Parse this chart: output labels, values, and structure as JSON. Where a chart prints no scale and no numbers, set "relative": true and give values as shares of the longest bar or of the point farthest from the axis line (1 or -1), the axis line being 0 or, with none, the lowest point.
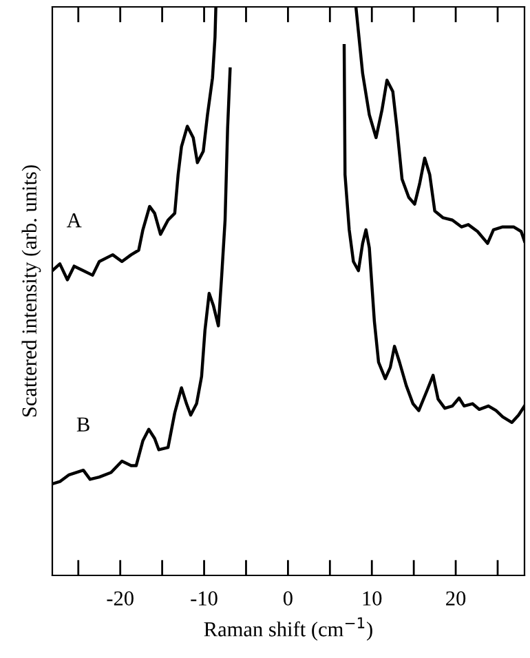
{
  "chart_data": {
    "type": "line",
    "relative": true,
    "xlabel": "Raman shift (cm$^{−1}$)",
    "ylabel": "Scattered intensity (arb. units)",
    "xlim": [
      -28.1,
      28.2
    ],
    "xticks": [
      {
        "value": -25,
        "label": null
      },
      -20,
      {
        "value": -15,
        "label": null
      },
      -10,
      {
        "value": -5,
        "label": null
      },
      0,
      {
        "value": 5,
        "label": null
      },
      10,
      {
        "value": 15,
        "label": null
      },
      20,
      {
        "value": 25,
        "label": null
      }
    ],
    "tick_labels": "x",
    "grid": false,
    "legend": false,
    "marker": "none",
    "line_style": "solid",
    "series": [
      {
        "name": "A",
        "color": "#000000",
        "x": [
          -28.1,
          -27.2,
          -26.3,
          -25.5,
          -24.4,
          -23.3,
          -22.5,
          -20.9,
          -19.8,
          -18.7,
          -17.8,
          -17.3,
          -16.5,
          -15.9,
          -15.2,
          -14.3,
          -13.5,
          -13.1,
          -12.7,
          -12.0,
          -11.3,
          -10.8,
          -10.1,
          -9.6,
          -9.0,
          -8.7,
          -8.6,
          0,
          8.1,
          8.4,
          8.9,
          9.7,
          10.5,
          11.2,
          11.8,
          12.5,
          13.0,
          13.6,
          14.4,
          15.1,
          15.7,
          16.3,
          16.9,
          17.5,
          18.5,
          19.6,
          20.7,
          21.5,
          22.6,
          23.8,
          24.5,
          25.6,
          26.9,
          27.8,
          28.2
        ],
        "values": [
          0.536,
          0.548,
          0.52,
          0.544,
          0.536,
          0.528,
          0.552,
          0.564,
          0.552,
          0.564,
          0.572,
          0.608,
          0.649,
          0.637,
          0.6,
          0.625,
          0.637,
          0.705,
          0.754,
          0.79,
          0.77,
          0.726,
          0.746,
          0.81,
          0.875,
          0.947,
          1.0,
          null,
          1.0,
          0.956,
          0.883,
          0.81,
          0.77,
          0.818,
          0.871,
          0.851,
          0.786,
          0.697,
          0.665,
          0.653,
          0.689,
          0.734,
          0.705,
          0.641,
          0.629,
          0.625,
          0.613,
          0.617,
          0.605,
          0.584,
          0.608,
          0.613,
          0.613,
          0.605,
          0.588
        ]
      },
      {
        "name": "B",
        "color": "#000000",
        "x": [
          -28.1,
          -27.2,
          -26.1,
          -24.4,
          -23.6,
          -22.5,
          -21.1,
          -19.8,
          -18.7,
          -18.1,
          -17.3,
          -16.6,
          -15.9,
          -15.4,
          -14.3,
          -13.5,
          -12.7,
          -12.1,
          -11.6,
          -10.9,
          -10.3,
          -9.9,
          -9.4,
          -8.9,
          -8.3,
          -7.9,
          -7.5,
          -7.2,
          -6.9,
          0,
          6.7,
          6.8,
          7.3,
          7.8,
          8.4,
          8.9,
          9.3,
          9.7,
          10.3,
          10.8,
          11.6,
          12.2,
          12.7,
          13.3,
          14.1,
          14.9,
          15.6,
          16.6,
          17.3,
          17.9,
          18.7,
          19.6,
          20.4,
          21.0,
          22.0,
          22.8,
          23.9,
          24.8,
          25.6,
          26.7,
          27.5,
          28.2
        ],
        "values": [
          0.161,
          0.165,
          0.177,
          0.185,
          0.169,
          0.173,
          0.181,
          0.201,
          0.193,
          0.193,
          0.237,
          0.257,
          0.241,
          0.221,
          0.225,
          0.286,
          0.33,
          0.302,
          0.282,
          0.302,
          0.35,
          0.431,
          0.496,
          0.475,
          0.439,
          0.528,
          0.625,
          0.786,
          0.891,
          null,
          0.932,
          0.705,
          0.608,
          0.552,
          0.536,
          0.584,
          0.608,
          0.576,
          0.447,
          0.375,
          0.346,
          0.366,
          0.403,
          0.375,
          0.334,
          0.302,
          0.29,
          0.326,
          0.352,
          0.31,
          0.294,
          0.298,
          0.312,
          0.298,
          0.302,
          0.292,
          0.298,
          0.29,
          0.279,
          0.269,
          0.282,
          0.298
        ]
      }
    ]
  }
}
